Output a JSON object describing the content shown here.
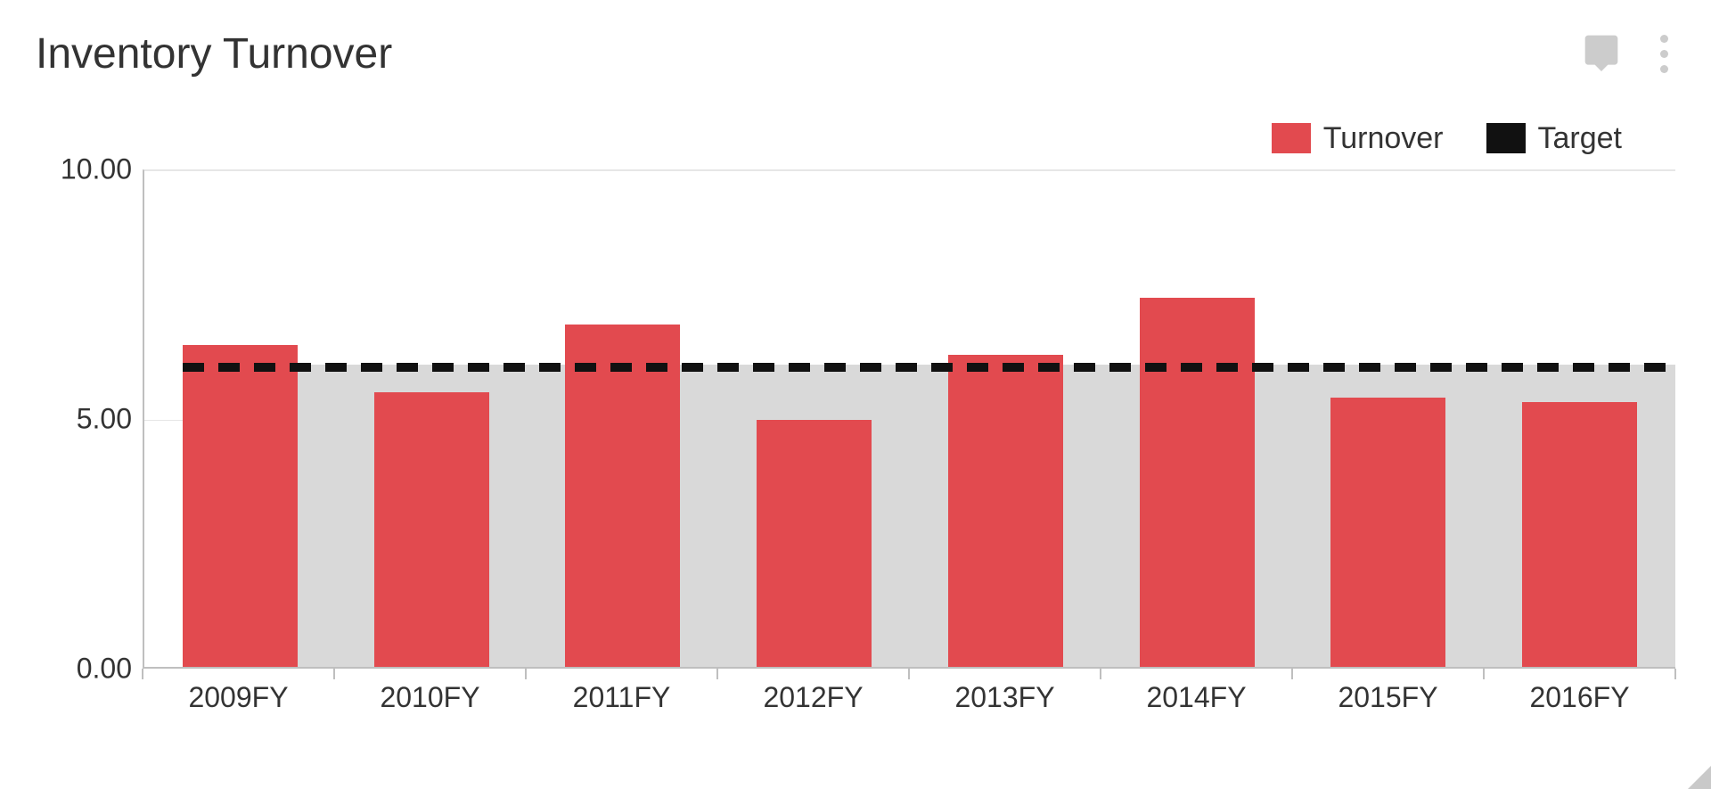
{
  "title": "Inventory Turnover",
  "icons": {
    "comment": "comment-icon",
    "menu": "menu-dots-icon"
  },
  "legend": [
    {
      "label": "Turnover",
      "color": "#e24a4f"
    },
    {
      "label": "Target",
      "color": "#111111"
    }
  ],
  "chart": {
    "type": "bar",
    "background_color": "#ffffff",
    "axis_color": "#bfbfbf",
    "grid_color": "#e6e6e6",
    "label_color": "#333333",
    "label_fontsize": 32,
    "y": {
      "min": 0,
      "max": 10,
      "ticks": [
        0.0,
        5.0,
        10.0
      ],
      "tick_labels": [
        "0.00",
        "5.00",
        "10.00"
      ]
    },
    "x_categories": [
      "2009FY",
      "2010FY",
      "2011FY",
      "2012FY",
      "2013FY",
      "2014FY",
      "2015FY",
      "2016FY"
    ],
    "shade_band": {
      "from": 0,
      "to": 6.05,
      "color": "#d9d9d9",
      "extends_beyond_last": true
    },
    "bars": {
      "values": [
        6.45,
        5.5,
        6.85,
        4.95,
        6.25,
        7.4,
        5.4,
        5.3
      ],
      "color": "#e24a4f",
      "width_ratio": 0.6
    },
    "target": {
      "value": 6.05,
      "color": "#111111",
      "dash": "16 12",
      "width": 10
    }
  }
}
